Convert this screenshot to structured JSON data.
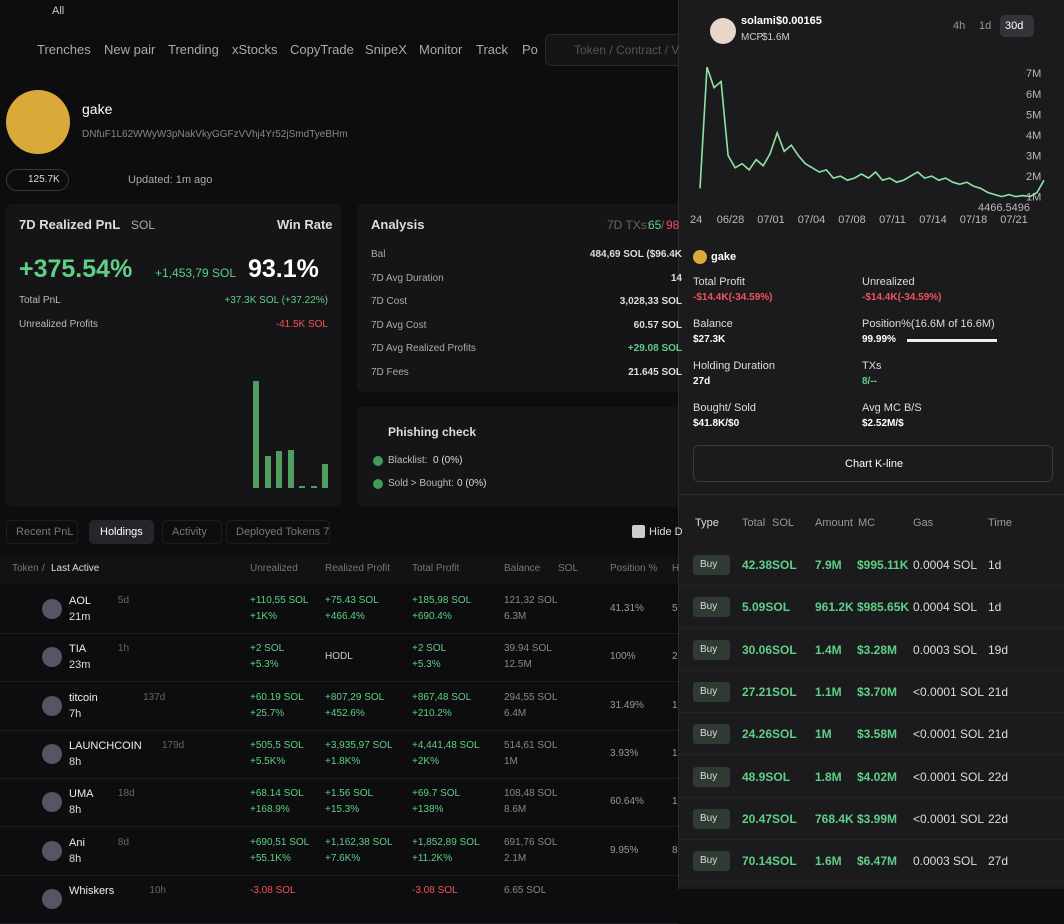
{
  "top": {
    "filter": "All"
  },
  "nav": {
    "items": [
      "Trenches",
      "New pair",
      "Trending",
      "xStocks",
      "CopyTrade",
      "SnipeX",
      "Monitor",
      "Track",
      "Po"
    ],
    "search": "Token / Contract / V"
  },
  "profile": {
    "name": "gake",
    "address": "DNfuF1L62WWyW3pNakVkyGGFzVVhj4Yr52jSmdTyeBHm",
    "followers": "125.7K",
    "updated": "Updated: 1m ago"
  },
  "pnl": {
    "title": "7D Realized PnL",
    "unit": "SOL",
    "winrate_label": "Win Rate",
    "percent": "+375.54%",
    "sol": "+1,453,79 SOL",
    "winrate": "93.1%",
    "rows": [
      {
        "label": "Total PnL",
        "value": "+37.3K SOL (+37.22%)"
      },
      {
        "label": "Unrealized Profits",
        "value": "-41.5K SOL"
      }
    ],
    "distribution": [
      107,
      32,
      37,
      38,
      2,
      2,
      24
    ]
  },
  "analysis": {
    "title": "Analysis",
    "txs_label": "7D TXs:",
    "txs_win": "65",
    "txs_sep": "/",
    "txs_loss": "98",
    "rows": [
      {
        "label": "Bal",
        "value": "484,69 SOL ($96.4K"
      },
      {
        "label": "7D Avg Duration",
        "value": "14"
      },
      {
        "label": "7D Cost",
        "value": "3,028,33 SOL"
      },
      {
        "label": "7D Avg Cost",
        "value": "60.57 SOL"
      },
      {
        "label": "7D Avg Realized Profits",
        "value": "+29.08 SOL"
      },
      {
        "label": "7D Fees",
        "value": "21.645 SOL"
      }
    ]
  },
  "phishing": {
    "title": "Phishing check",
    "rows": [
      {
        "label": "Blacklist:",
        "value": "0 (0%)"
      },
      {
        "label": "Sold > Bought:",
        "value": "0 (0%)"
      }
    ]
  },
  "tabs": {
    "items": [
      "Recent PnL",
      "Holdings",
      "Activity",
      "Deployed Tokens 7"
    ],
    "hide": "Hide D"
  },
  "holdings": {
    "headers": [
      "Token",
      "/",
      "Last Active",
      "Unrealized",
      "Realized Profit",
      "Total Profit",
      "Balance",
      "SOL",
      "Position %",
      "H"
    ],
    "rows": [
      {
        "token": "AOL",
        "age": "5d",
        "last": "21m",
        "unreal": [
          "+110,55 SOL",
          "+1K%"
        ],
        "real": [
          "+75.43 SOL",
          "+466.4%"
        ],
        "total": [
          "+185,98 SOL",
          "+690.4%"
        ],
        "bal": [
          "121,32 SOL",
          "6.3M"
        ],
        "pos": "41.31%",
        "h": "5"
      },
      {
        "token": "TIA",
        "age": "1h",
        "last": "23m",
        "unreal": [
          "+2 SOL",
          "+5.3%"
        ],
        "real": [
          "HODL"
        ],
        "total": [
          "+2 SOL",
          "+5.3%"
        ],
        "bal": [
          "39.94 SOL",
          "12.5M"
        ],
        "pos": "100%",
        "h": "2"
      },
      {
        "token": "titcoin",
        "age": "137d",
        "last": "7h",
        "unreal": [
          "+60.19 SOL",
          "+25.7%"
        ],
        "real": [
          "+807,29 SOL",
          "+452.6%"
        ],
        "total": [
          "+867,48 SOL",
          "+210.2%"
        ],
        "bal": [
          "294,55 SOL",
          "6.4M"
        ],
        "pos": "31.49%",
        "h": "1"
      },
      {
        "token": "LAUNCHCOIN",
        "age": "179d",
        "last": "8h",
        "unreal": [
          "+505,5 SOL",
          "+5.5K%"
        ],
        "real": [
          "+3,935,97 SOL",
          "+1.8K%"
        ],
        "total": [
          "+4,441,48 SOL",
          "+2K%"
        ],
        "bal": [
          "514,61 SOL",
          "1M"
        ],
        "pos": "3.93%",
        "h": "1"
      },
      {
        "token": "UMA",
        "age": "18d",
        "last": "8h",
        "unreal": [
          "+68.14 SOL",
          "+168.9%"
        ],
        "real": [
          "+1.56 SOL",
          "+15.3%"
        ],
        "total": [
          "+69.7 SOL",
          "+138%"
        ],
        "bal": [
          "108,48 SOL",
          "8.6M"
        ],
        "pos": "60.64%",
        "h": "1"
      },
      {
        "token": "Ani",
        "age": "8d",
        "last": "8h",
        "unreal": [
          "+690,51 SOL",
          "+55.1K%"
        ],
        "real": [
          "+1,162,38 SOL",
          "+7.6K%"
        ],
        "total": [
          "+1,852,89 SOL",
          "+11.2K%"
        ],
        "bal": [
          "691,76 SOL",
          "2.1M"
        ],
        "pos": "9.95%",
        "h": "8"
      },
      {
        "token": "Whiskers",
        "age": "10h",
        "last": "",
        "unreal": [
          "-3.08 SOL"
        ],
        "real": [],
        "total": [
          "-3.08 SOL"
        ],
        "bal": [
          "6.65 SOL"
        ],
        "pos": "",
        "h": ""
      }
    ]
  },
  "panel": {
    "token": "solami",
    "price": "$0.00165",
    "mcp_label": "MCP",
    "mcp": "$1.6M",
    "ranges": [
      "4h",
      "1d",
      "30d"
    ],
    "active_range": 2,
    "chart": {
      "type": "line",
      "categories": [
        "24",
        "06/28",
        "07/01",
        "07/04",
        "07/08",
        "07/11",
        "07/14",
        "07/18",
        "07/21"
      ],
      "values": [
        1.4,
        7.3,
        6.3,
        6.6,
        3.0,
        2.4,
        2.6,
        2.3,
        2.8,
        2.5,
        3.1,
        4.1,
        3.2,
        3.5,
        3.0,
        2.6,
        2.4,
        2.2,
        2.3,
        1.9,
        2.0,
        1.8,
        1.9,
        2.1,
        1.9,
        2.2,
        1.8,
        1.9,
        1.7,
        1.8,
        2.0,
        2.2,
        1.9,
        2.0,
        1.8,
        1.9,
        1.7,
        1.6,
        1.7,
        1.5,
        1.4,
        1.2,
        1.1,
        1.0,
        1.1,
        1.0,
        1.05,
        1.0,
        1.2,
        1.8
      ],
      "color": "#8fe3a3",
      "ylim": [
        0.35,
        7.4
      ],
      "yticks": [
        {
          "value": 1,
          "label": "1M"
        },
        {
          "value": 2,
          "label": "2M"
        },
        {
          "value": 3,
          "label": "3M"
        },
        {
          "value": 4,
          "label": "4M"
        },
        {
          "value": 5,
          "label": "5M"
        },
        {
          "value": 6,
          "label": "6M"
        },
        {
          "value": 7,
          "label": "7M"
        }
      ],
      "annotation": "4466.5496"
    },
    "holder": "gake",
    "stats": [
      {
        "label": "Total Profit",
        "value": "-$14.4K(-34.59%)"
      },
      {
        "label": "Unrealized",
        "value": "-$14.4K(-34.59%)"
      },
      {
        "label": "Balance",
        "value": "$27.3K"
      },
      {
        "label": "Position%(16.6M of 16.6M)",
        "value": "99.99%"
      },
      {
        "label": "Holding Duration",
        "value": "27d"
      },
      {
        "label": "TXs",
        "value": "8/--"
      },
      {
        "label": "Bought/ Sold",
        "value": "$41.8K/$0"
      },
      {
        "label": "Avg MC B/S",
        "value": "$2.52M/$"
      }
    ],
    "position_pct": 99.99,
    "button": "Chart K-line",
    "trade_headers": [
      "Type",
      "Total",
      "SOL",
      "Amount",
      "MC",
      "Gas",
      "Time"
    ],
    "trades": [
      [
        "Buy",
        "42.38SOL",
        "7.9M",
        "$995.11K",
        "0.0004 SOL",
        "1d"
      ],
      [
        "Buy",
        "5.09SOL",
        "961.2K",
        "$985.65K",
        "0.0004 SOL",
        "1d"
      ],
      [
        "Buy",
        "30.06SOL",
        "1.4M",
        "$3.28M",
        "0.0003 SOL",
        "19d"
      ],
      [
        "Buy",
        "27.21SOL",
        "1.1M",
        "$3.70M",
        "<0.0001 SOL",
        "21d"
      ],
      [
        "Buy",
        "24.26SOL",
        "1M",
        "$3.58M",
        "<0.0001 SOL",
        "21d"
      ],
      [
        "Buy",
        "48.9SOL",
        "1.8M",
        "$4.02M",
        "<0.0001 SOL",
        "22d"
      ],
      [
        "Buy",
        "20.47SOL",
        "768.4K",
        "$3.99M",
        "<0.0001 SOL",
        "22d"
      ],
      [
        "Buy",
        "70.14SOL",
        "1.6M",
        "$6.47M",
        "0.0003 SOL",
        "27d"
      ]
    ]
  }
}
